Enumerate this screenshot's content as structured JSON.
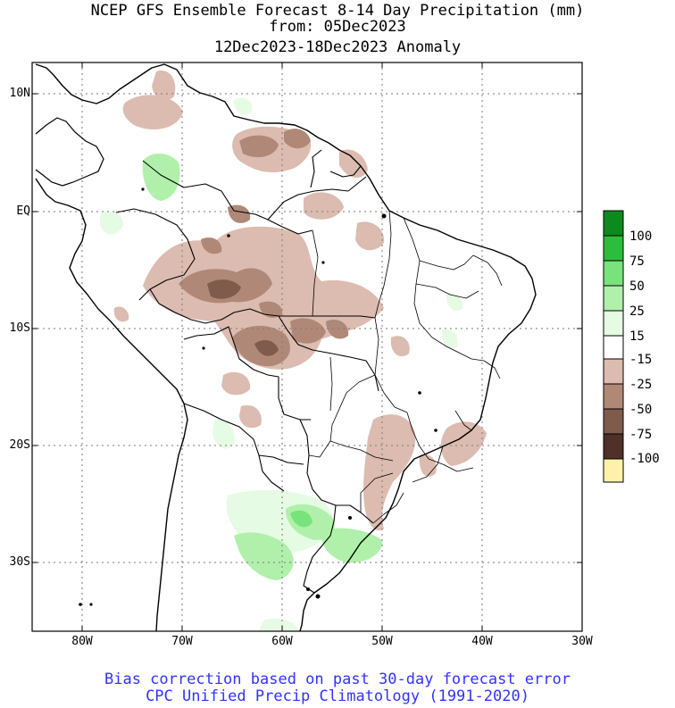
{
  "header": {
    "line1": "NCEP GFS Ensemble Forecast 8-14 Day Precipitation (mm)",
    "line2": "from: 05Dec2023",
    "line3": "12Dec2023-18Dec2023 Anomaly"
  },
  "axes": {
    "lat_labels": [
      "10N",
      "EQ",
      "10S",
      "20S",
      "30S"
    ],
    "lon_labels": [
      "80W",
      "70W",
      "60W",
      "50W",
      "40W",
      "30W"
    ]
  },
  "legend": {
    "labels": [
      "100",
      "75",
      "50",
      "25",
      "15",
      "-15",
      "-25",
      "-50",
      "-75",
      "-100"
    ],
    "colors": [
      "#0b8a1e",
      "#2dbd3c",
      "#78e37c",
      "#b0f0ab",
      "#e6fbe3",
      "#ffffff",
      "#dcbcb0",
      "#b08878",
      "#7e5b4c",
      "#4e3128",
      "#fff2a8"
    ]
  },
  "footer": {
    "line1": "Bias correction based on past 30-day forecast error",
    "line2": "CPC Unified Precip Climatology (1991-2020)"
  }
}
